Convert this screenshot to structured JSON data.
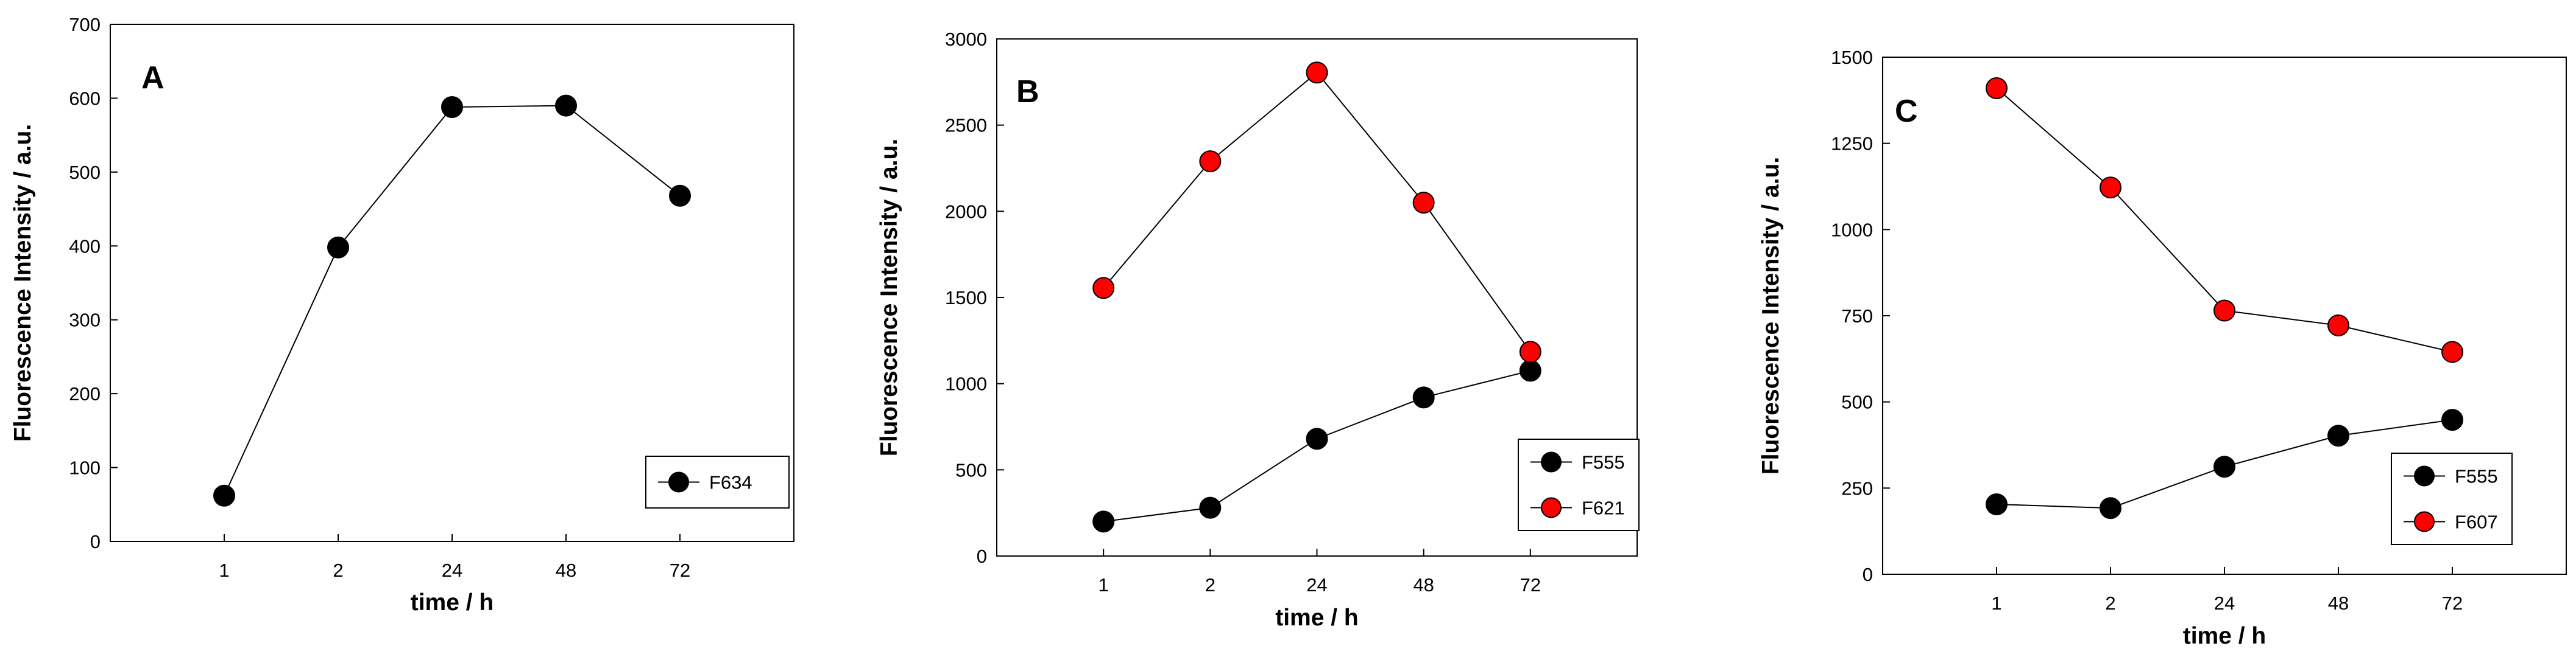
{
  "chart_data": [
    {
      "type": "line",
      "panel_letter": "A",
      "categories": [
        "1",
        "2",
        "24",
        "48",
        "72"
      ],
      "xlabel": "time  / h",
      "ylabel": "Fluorescence Intensity / a.u.",
      "ylim": [
        0,
        700
      ],
      "yticks": [
        "0",
        "100",
        "200",
        "300",
        "400",
        "500",
        "600",
        "700"
      ],
      "legend_position": "bottom-right",
      "series": [
        {
          "name": "F634",
          "color": "#000000",
          "values": [
            62,
            398,
            588,
            590,
            468
          ]
        }
      ]
    },
    {
      "type": "line",
      "panel_letter": "B",
      "categories": [
        "1",
        "2",
        "24",
        "48",
        "72"
      ],
      "xlabel": "time / h",
      "ylabel": "Fluorescence Intensity / a.u.",
      "ylim": [
        0,
        3000
      ],
      "yticks": [
        "0",
        "500",
        "1000",
        "1500",
        "2000",
        "2500",
        "3000"
      ],
      "legend_position": "bottom-right",
      "series": [
        {
          "name": "F555",
          "color": "#000000",
          "values": [
            200,
            280,
            680,
            920,
            1075
          ]
        },
        {
          "name": "F621",
          "color": "#ff0000",
          "values": [
            1555,
            2290,
            2805,
            2050,
            1185
          ]
        }
      ]
    },
    {
      "type": "line",
      "panel_letter": "C",
      "categories": [
        "1",
        "2",
        "24",
        "48",
        "72"
      ],
      "xlabel": "time / h",
      "ylabel": "Fluorescence Intensity / a.u.",
      "ylim": [
        0,
        1500
      ],
      "yticks": [
        "0",
        "250",
        "500",
        "750",
        "1000",
        "1250",
        "1500"
      ],
      "legend_position": "bottom-right",
      "series": [
        {
          "name": "F555",
          "color": "#000000",
          "values": [
            203,
            192,
            312,
            402,
            448
          ]
        },
        {
          "name": "F607",
          "color": "#ff0000",
          "values": [
            1410,
            1122,
            765,
            722,
            645
          ]
        }
      ]
    }
  ]
}
